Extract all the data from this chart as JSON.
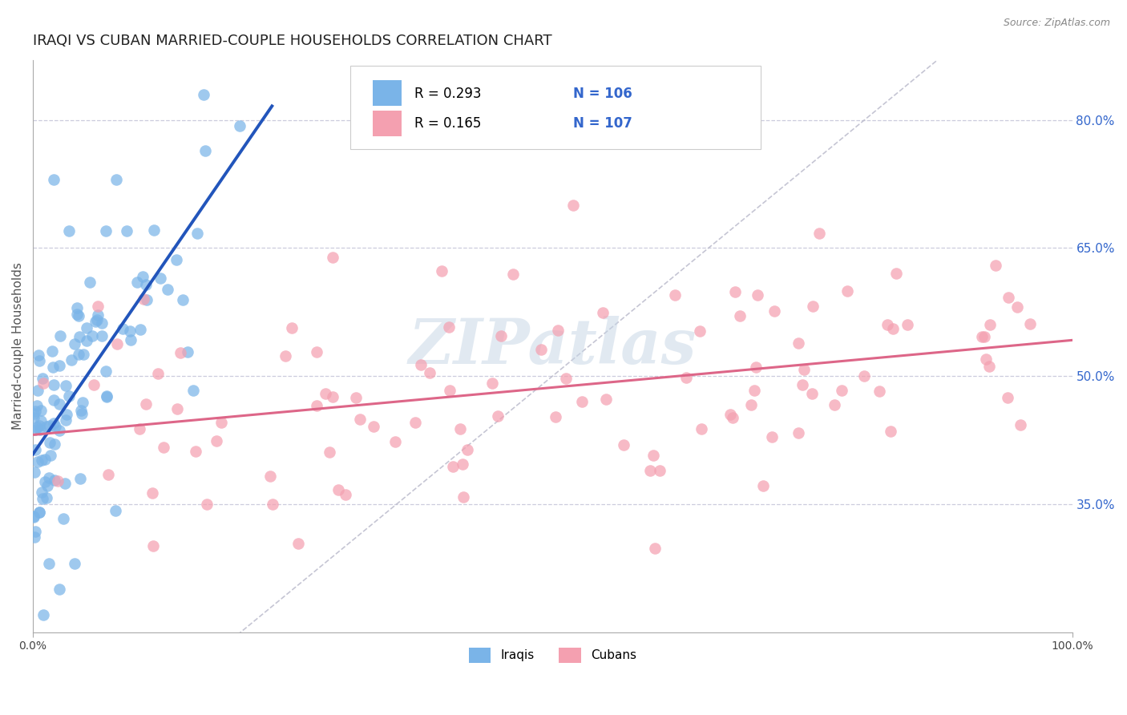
{
  "title": "IRAQI VS CUBAN MARRIED-COUPLE HOUSEHOLDS CORRELATION CHART",
  "source_text": "Source: ZipAtlas.com",
  "ylabel": "Married-couple Households",
  "x_min": 0.0,
  "x_max": 1.0,
  "y_min": 0.2,
  "y_max": 0.87,
  "y_tick_right": [
    0.35,
    0.5,
    0.65,
    0.8
  ],
  "y_tick_right_labels": [
    "35.0%",
    "50.0%",
    "65.0%",
    "80.0%"
  ],
  "blue_color": "#7ab4e8",
  "blue_line_color": "#2255bb",
  "pink_color": "#f4a0b0",
  "pink_line_color": "#dd6688",
  "ref_line_color": "#bbbbcc",
  "legend_r_blue": "R = 0.293",
  "legend_n_blue": "N = 106",
  "legend_r_pink": "R = 0.165",
  "legend_n_pink": "N = 107",
  "legend_n_color": "#3366cc",
  "label_iraqis": "Iraqis",
  "label_cubans": "Cubans",
  "watermark": "ZIPatlas",
  "background_color": "#ffffff",
  "title_fontsize": 13,
  "axis_label_fontsize": 11,
  "tick_fontsize": 10
}
